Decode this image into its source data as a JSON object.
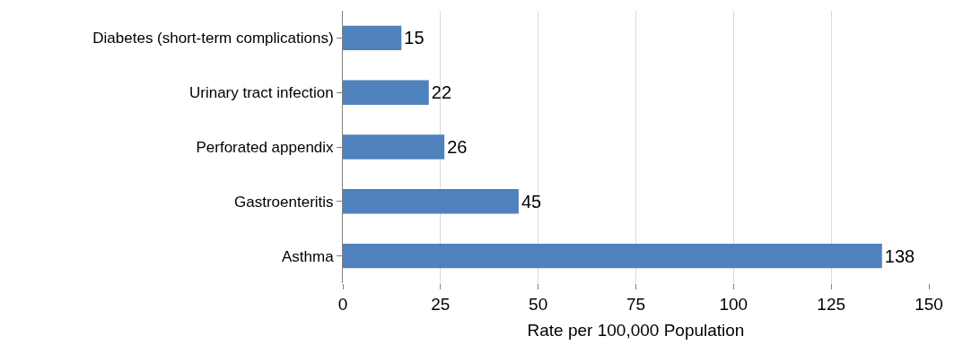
{
  "chart_data": {
    "type": "bar",
    "orientation": "horizontal",
    "xlabel": "Rate per 100,000 Population",
    "categories": [
      "Diabetes (short-term complications)",
      "Urinary tract infection",
      "Perforated appendix",
      "Gastroenteritis",
      "Asthma"
    ],
    "values": [
      15,
      22,
      26,
      45,
      138
    ],
    "color": "#4f81bd",
    "xlim": [
      0,
      150
    ],
    "xticks": [
      0,
      25,
      50,
      75,
      100,
      125,
      150
    ],
    "grid": "x",
    "data_labels": true,
    "legend": false
  }
}
